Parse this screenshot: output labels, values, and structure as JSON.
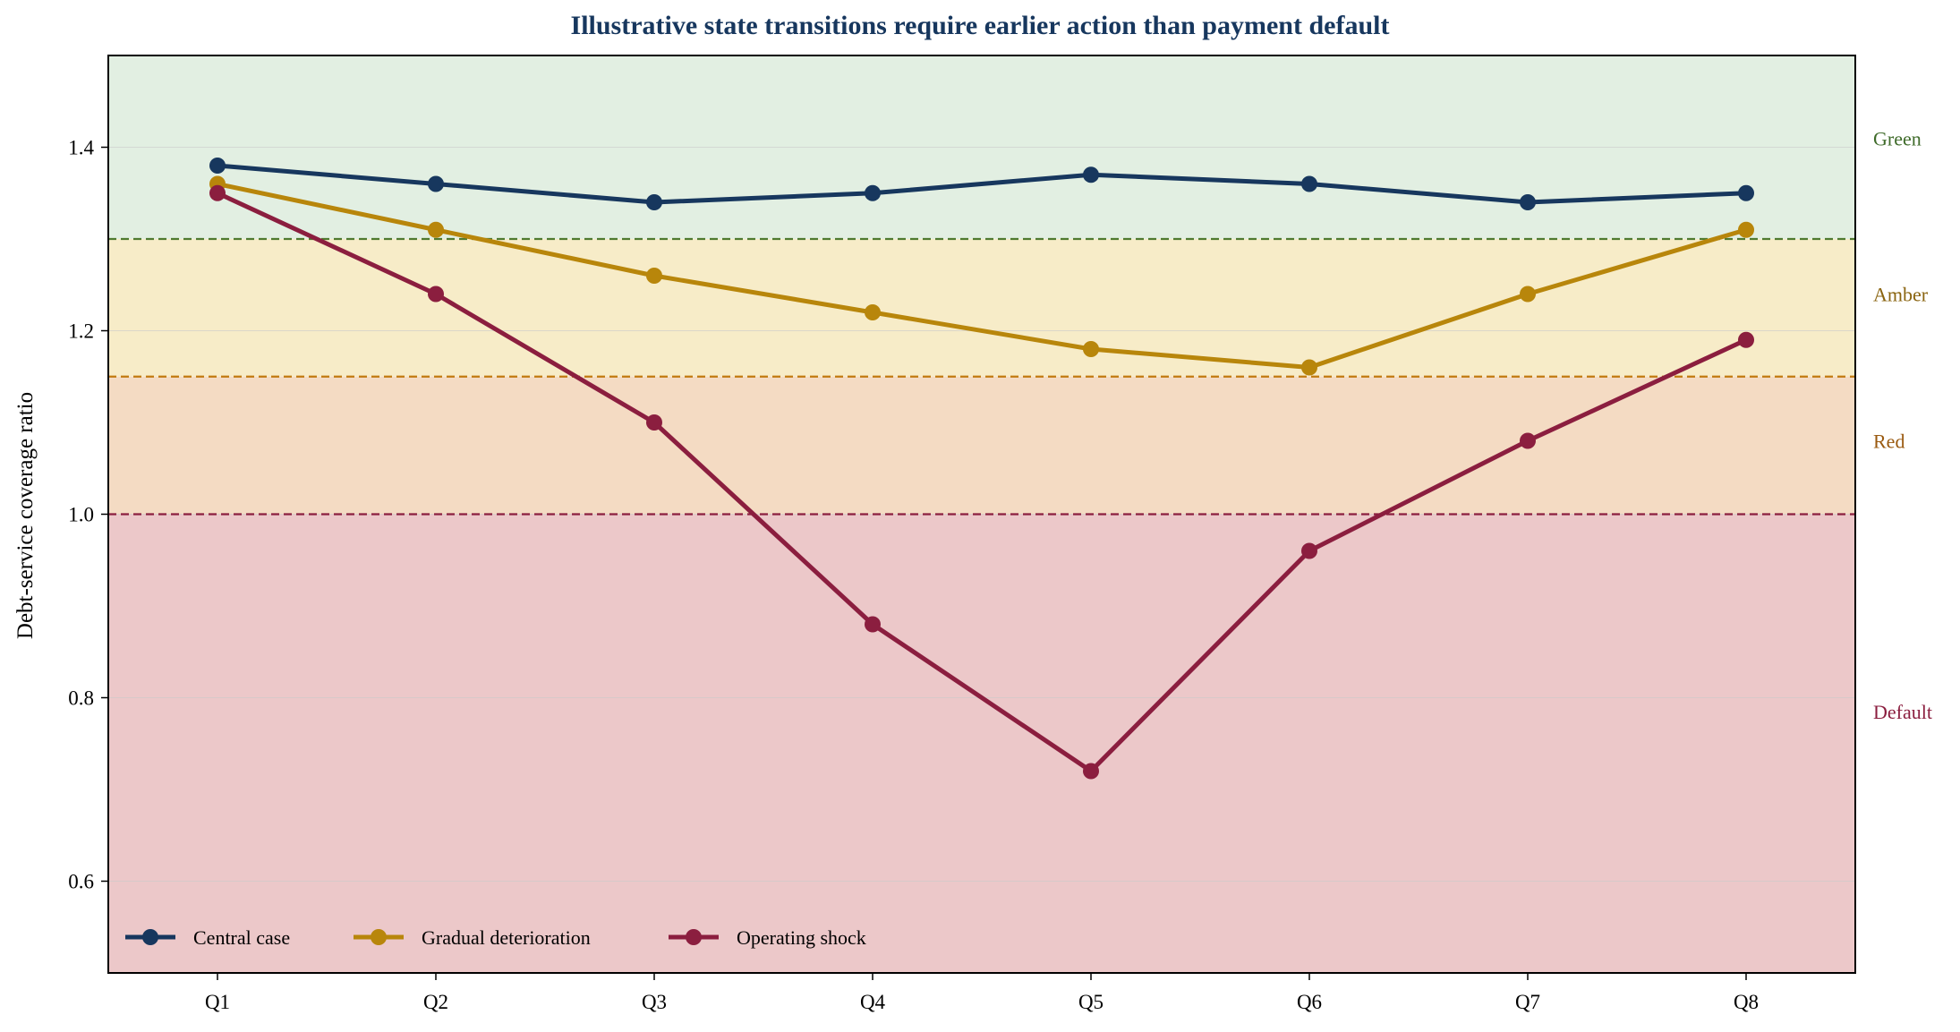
{
  "chart_data": {
    "type": "line",
    "title": "Illustrative state transitions require earlier action than payment default",
    "xlabel": "",
    "ylabel": "Debt-service coverage ratio",
    "categories": [
      "Q1",
      "Q2",
      "Q3",
      "Q4",
      "Q5",
      "Q6",
      "Q7",
      "Q8"
    ],
    "ylim": [
      0.5,
      1.5
    ],
    "yticks": [
      "0.6",
      "0.8",
      "1.0",
      "1.2",
      "1.4"
    ],
    "grid": "horizontal",
    "legend_position": "bottom-left",
    "series": [
      {
        "name": "Central case",
        "color": "#17375e",
        "values": [
          1.38,
          1.36,
          1.34,
          1.35,
          1.37,
          1.36,
          1.34,
          1.35
        ]
      },
      {
        "name": "Gradual deterioration",
        "color": "#b8860b",
        "values": [
          1.36,
          1.31,
          1.26,
          1.22,
          1.18,
          1.16,
          1.24,
          1.31
        ]
      },
      {
        "name": "Operating shock",
        "color": "#8b1e3f",
        "values": [
          1.35,
          1.24,
          1.1,
          0.88,
          0.72,
          0.96,
          1.08,
          1.19
        ]
      }
    ],
    "zones": [
      {
        "label": "Green",
        "from": 1.3,
        "to": 1.5,
        "fill": "#e2efe2",
        "label_color": "#3f6b2a",
        "label_at": 1.41
      },
      {
        "label": "Amber",
        "from": 1.15,
        "to": 1.3,
        "fill": "#f7ecc8",
        "label_color": "#8a6410",
        "label_at": 1.24
      },
      {
        "label": "Red",
        "from": 1.0,
        "to": 1.15,
        "fill": "#f4dbc3",
        "label_color": "#9a5a10",
        "label_at": 1.08
      },
      {
        "label": "Default",
        "from": 0.5,
        "to": 1.0,
        "fill": "#ecc8c9",
        "label_color": "#8b1e3f",
        "label_at": 0.785
      }
    ],
    "thresholds": [
      {
        "value": 1.3,
        "color": "#4f7a30"
      },
      {
        "value": 1.15,
        "color": "#c27a10"
      },
      {
        "value": 1.0,
        "color": "#8b1e3f"
      }
    ]
  }
}
